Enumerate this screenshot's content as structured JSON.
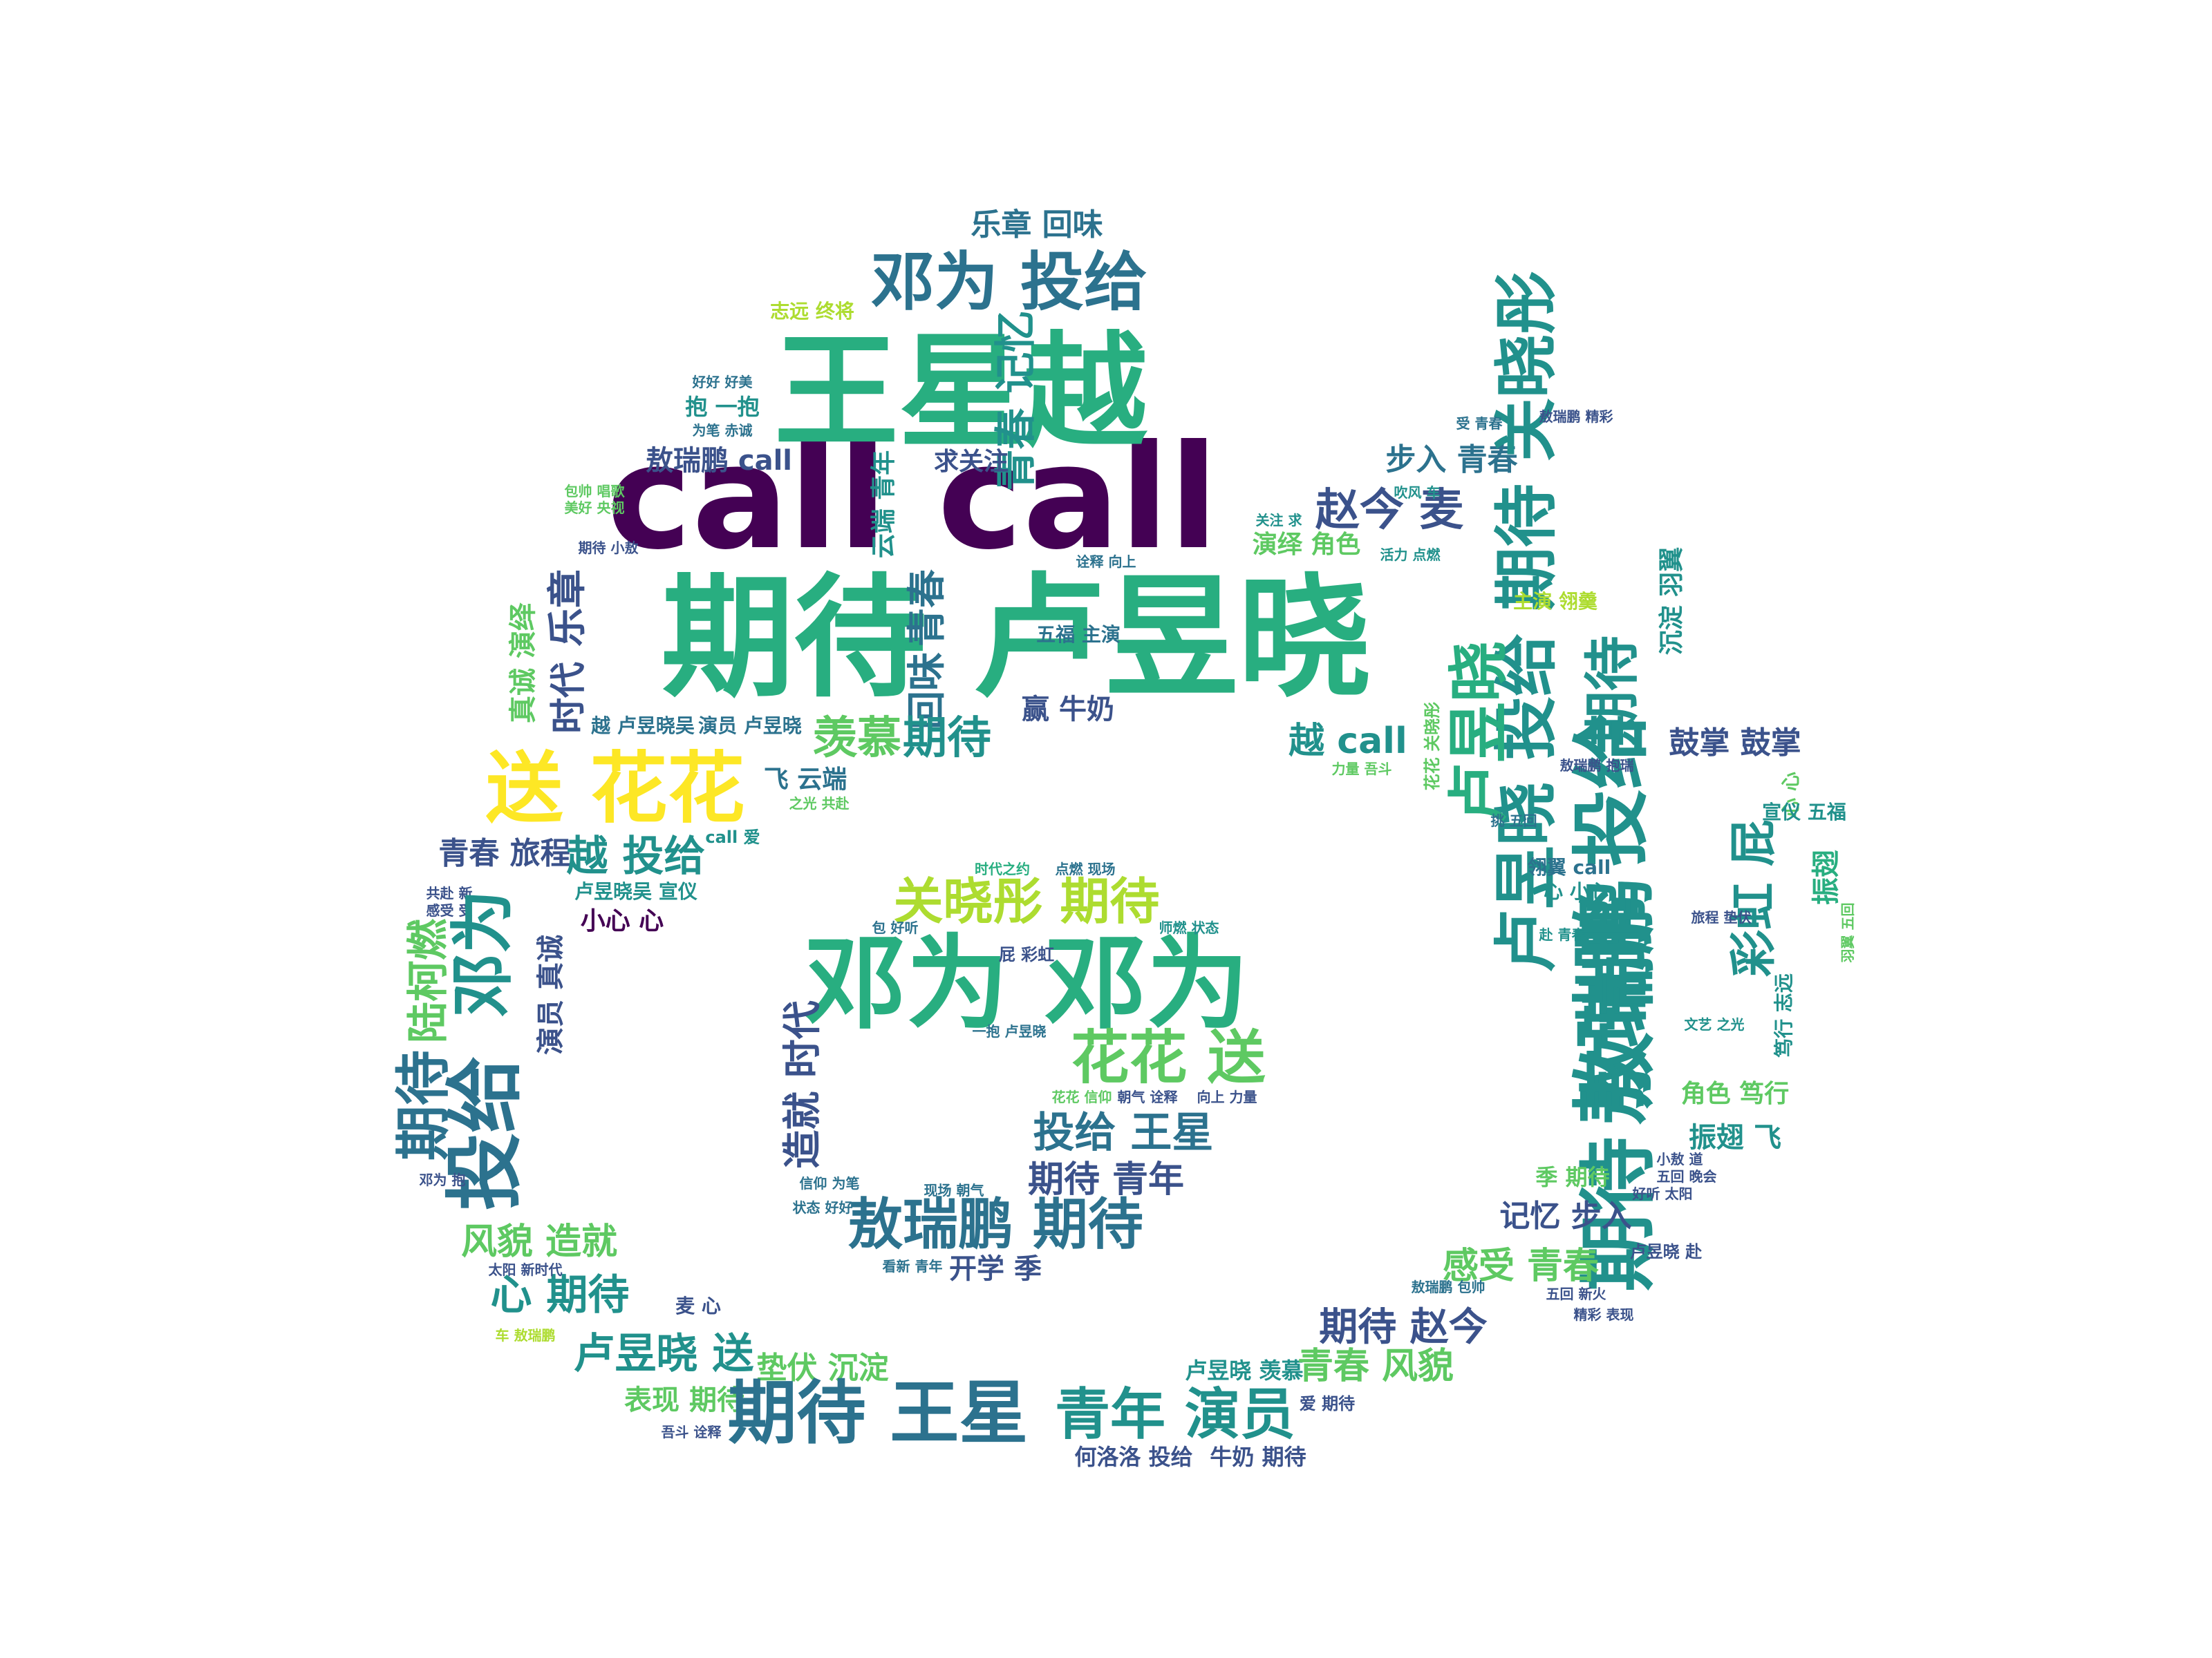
{
  "palette": {
    "dark_purple": "#440154",
    "indigo": "#3b528b",
    "teal_blue": "#2c728e",
    "teal": "#21918c",
    "green": "#28ae80",
    "light_green": "#5ec962",
    "lime": "#addc30",
    "yellow": "#fde725"
  },
  "words": [
    {
      "text": "期待 卢昱晓",
      "size": 96,
      "color": "#28ae80"
    },
    {
      "text": "call call",
      "size": 104,
      "color": "#440154"
    },
    {
      "text": "王星越",
      "size": 90,
      "color": "#28ae80"
    },
    {
      "text": "邓为 投给",
      "size": 46,
      "color": "#2c728e"
    },
    {
      "text": "乐章 回味",
      "size": 22,
      "color": "#2c728e"
    },
    {
      "text": "志远 终将",
      "size": 14,
      "color": "#addc30"
    },
    {
      "text": "青春 记忆",
      "size": 30,
      "color": "#21918c"
    },
    {
      "text": "敖瑞鹏 call",
      "size": 20,
      "color": "#3b528b"
    },
    {
      "text": "求关注",
      "size": 18,
      "color": "#3b528b"
    },
    {
      "text": "云端 青年",
      "size": 18,
      "color": "#21918c"
    },
    {
      "text": "抱 一抱",
      "size": 16,
      "color": "#21918c"
    },
    {
      "text": "好好 好美",
      "size": 10,
      "color": "#2c728e"
    },
    {
      "text": "为笔 赤诚",
      "size": 10,
      "color": "#2c728e"
    },
    {
      "text": "期待 小敖",
      "size": 10,
      "color": "#3b528b"
    },
    {
      "text": "步入 青春",
      "size": 22,
      "color": "#2c728e"
    },
    {
      "text": "赵今 麦",
      "size": 32,
      "color": "#3b528b"
    },
    {
      "text": "卢昱晓 投给 期待 关晓彤",
      "size": 46,
      "color": "#21918c"
    },
    {
      "text": "演绎 角色",
      "size": 18,
      "color": "#5ec962"
    },
    {
      "text": "吹风 车",
      "size": 10,
      "color": "#21918c"
    },
    {
      "text": "活力 点燃",
      "size": 10,
      "color": "#21918c"
    },
    {
      "text": "诠释 向上",
      "size": 10,
      "color": "#2c728e"
    },
    {
      "text": "关注 求",
      "size": 10,
      "color": "#21918c"
    },
    {
      "text": "敖瑞鹏 精彩",
      "size": 10,
      "color": "#3b528b"
    },
    {
      "text": "受 青春",
      "size": 10,
      "color": "#2c728e"
    },
    {
      "text": "主演 翎羹",
      "size": 14,
      "color": "#addc30"
    },
    {
      "text": "沉淀 羽翼",
      "size": 18,
      "color": "#21918c"
    },
    {
      "text": "乐章",
      "size": 28,
      "color": "#3b528b"
    },
    {
      "text": "时代",
      "size": 26,
      "color": "#3b528b"
    },
    {
      "text": "真诚 演绎",
      "size": 20,
      "color": "#5ec962"
    },
    {
      "text": "青春",
      "size": 28,
      "color": "#2c728e"
    },
    {
      "text": "回味",
      "size": 28,
      "color": "#2c728e"
    },
    {
      "text": "五福 主演",
      "size": 14,
      "color": "#2c728e"
    },
    {
      "text": "赢 牛奶",
      "size": 20,
      "color": "#3b528b"
    },
    {
      "text": "越 卢昱晓吴",
      "size": 14,
      "color": "#2c728e"
    },
    {
      "text": "演员 卢昱晓",
      "size": 14,
      "color": "#2c728e"
    },
    {
      "text": "羡慕",
      "size": 32,
      "color": "#5ec962"
    },
    {
      "text": "期待",
      "size": 32,
      "color": "#21918c"
    },
    {
      "text": "越 call",
      "size": 26,
      "color": "#21918c"
    },
    {
      "text": "力量 吾斗",
      "size": 10,
      "color": "#5ec962"
    },
    {
      "text": "花花 关晓彤",
      "size": 12,
      "color": "#5ec962"
    },
    {
      "text": "卢昱晓",
      "size": 44,
      "color": "#28ae80"
    },
    {
      "text": "期待",
      "size": 40,
      "color": "#21918c"
    },
    {
      "text": "鼓掌 鼓掌",
      "size": 22,
      "color": "#3b528b"
    },
    {
      "text": "敖瑞鹏 投给",
      "size": 56,
      "color": "#21918c"
    },
    {
      "text": "心 心",
      "size": 14,
      "color": "#5ec962"
    },
    {
      "text": "宣仪 五福",
      "size": 14,
      "color": "#21918c"
    },
    {
      "text": "彩虹 屁",
      "size": 34,
      "color": "#21918c"
    },
    {
      "text": "振翅",
      "size": 20,
      "color": "#28ae80"
    },
    {
      "text": "羽翼 五回",
      "size": 10,
      "color": "#5ec962"
    },
    {
      "text": "送 花花",
      "size": 56,
      "color": "#fde725"
    },
    {
      "text": "飞 云端",
      "size": 18,
      "color": "#2c728e"
    },
    {
      "text": "之光 共赴",
      "size": 10,
      "color": "#5ec962"
    },
    {
      "text": "call 爱",
      "size": 12,
      "color": "#21918c"
    },
    {
      "text": "青春 旅程",
      "size": 22,
      "color": "#3b528b"
    },
    {
      "text": "越 投给",
      "size": 30,
      "color": "#21918c"
    },
    {
      "text": "卢昱晓吴 宣仪",
      "size": 14,
      "color": "#21918c"
    },
    {
      "text": "小心 心",
      "size": 18,
      "color": "#440154"
    },
    {
      "text": "共赴 新",
      "size": 10,
      "color": "#3b528b"
    },
    {
      "text": "感受 受",
      "size": 10,
      "color": "#3b528b"
    },
    {
      "text": "陆柯燃",
      "size": 30,
      "color": "#5ec962"
    },
    {
      "text": "邓为",
      "size": 46,
      "color": "#21918c"
    },
    {
      "text": "演员 真诚",
      "size": 20,
      "color": "#3b528b"
    },
    {
      "text": "投给",
      "size": 56,
      "color": "#2c728e"
    },
    {
      "text": "期待",
      "size": 40,
      "color": "#2c728e"
    },
    {
      "text": "关晓彤 期待",
      "size": 36,
      "color": "#addc30"
    },
    {
      "text": "邓为 邓为",
      "size": 74,
      "color": "#28ae80"
    },
    {
      "text": "时代之约",
      "size": 10,
      "color": "#28ae80"
    },
    {
      "text": "点燃 现场",
      "size": 10,
      "color": "#2c728e"
    },
    {
      "text": "包 好听",
      "size": 10,
      "color": "#2c728e"
    },
    {
      "text": "屁 彩虹",
      "size": 12,
      "color": "#3b528b"
    },
    {
      "text": "师燃 状态",
      "size": 10,
      "color": "#21918c"
    },
    {
      "text": "一抱 卢昱晓",
      "size": 10,
      "color": "#2c728e"
    },
    {
      "text": "花花 送",
      "size": 42,
      "color": "#5ec962"
    },
    {
      "text": "造就 时代",
      "size": 28,
      "color": "#3b528b"
    },
    {
      "text": "投给 王星",
      "size": 30,
      "color": "#2c728e"
    },
    {
      "text": "期待 青年",
      "size": 26,
      "color": "#3b528b"
    },
    {
      "text": "敖瑞鹏 期待",
      "size": 40,
      "color": "#2c728e"
    },
    {
      "text": "开学 季",
      "size": 20,
      "color": "#3b528b"
    },
    {
      "text": "看新 青年",
      "size": 10,
      "color": "#2c728e"
    },
    {
      "text": "信仰 为笔",
      "size": 10,
      "color": "#2c728e"
    },
    {
      "text": "状态 好好",
      "size": 10,
      "color": "#2c728e"
    },
    {
      "text": "现场 朝气",
      "size": 10,
      "color": "#2c728e"
    },
    {
      "text": "花花 信仰",
      "size": 10,
      "color": "#5ec962"
    },
    {
      "text": "朝气 诠释",
      "size": 10,
      "color": "#3b528b"
    },
    {
      "text": "向上 力量",
      "size": 10,
      "color": "#3b528b"
    },
    {
      "text": "期待 敖瑞鹏",
      "size": 56,
      "color": "#21918c"
    },
    {
      "text": "角色 笃行",
      "size": 18,
      "color": "#5ec962"
    },
    {
      "text": "振翅 飞",
      "size": 20,
      "color": "#21918c"
    },
    {
      "text": "笃行 志远",
      "size": 14,
      "color": "#21918c"
    },
    {
      "text": "季 期待",
      "size": 16,
      "color": "#5ec962"
    },
    {
      "text": "记忆 步入",
      "size": 22,
      "color": "#3b528b"
    },
    {
      "text": "感受 青春",
      "size": 26,
      "color": "#5ec962"
    },
    {
      "text": "期待 赵今",
      "size": 28,
      "color": "#3b528b"
    },
    {
      "text": "卢昱晓 赴",
      "size": 12,
      "color": "#3b528b"
    },
    {
      "text": "敖瑞鹏 包帅",
      "size": 10,
      "color": "#2c728e"
    },
    {
      "text": "五回 新火",
      "size": 10,
      "color": "#3b528b"
    },
    {
      "text": "精彩 表现",
      "size": 10,
      "color": "#3b528b"
    },
    {
      "text": "卢昱晓 羡慕",
      "size": 16,
      "color": "#21918c"
    },
    {
      "text": "青春 风貌",
      "size": 26,
      "color": "#5ec962"
    },
    {
      "text": "爱 期待",
      "size": 12,
      "color": "#3b528b"
    },
    {
      "text": "风貌 造就",
      "size": 26,
      "color": "#5ec962"
    },
    {
      "text": "心 期待",
      "size": 30,
      "color": "#21918c"
    },
    {
      "text": "太阳 新时代",
      "size": 10,
      "color": "#3b528b"
    },
    {
      "text": "麦 心",
      "size": 14,
      "color": "#3b528b"
    },
    {
      "text": "车 敖瑞鹏",
      "size": 10,
      "color": "#addc30"
    },
    {
      "text": "卢昱晓 送",
      "size": 30,
      "color": "#21918c"
    },
    {
      "text": "垫伏 沉淀",
      "size": 22,
      "color": "#5ec962"
    },
    {
      "text": "表现 期待",
      "size": 20,
      "color": "#5ec962"
    },
    {
      "text": "吾斗 诠释",
      "size": 10,
      "color": "#3b528b"
    },
    {
      "text": "期待 王星",
      "size": 50,
      "color": "#2c728e"
    },
    {
      "text": "青年 演员",
      "size": 40,
      "color": "#21918c"
    },
    {
      "text": "何洛洛 投给",
      "size": 16,
      "color": "#3b528b"
    },
    {
      "text": "牛奶 期待",
      "size": 16,
      "color": "#3b528b"
    },
    {
      "text": "邓为 抱",
      "size": 10,
      "color": "#3b528b"
    },
    {
      "text": "好听 太阳",
      "size": 10,
      "color": "#3b528b"
    },
    {
      "text": "小敖 道",
      "size": 10,
      "color": "#3b528b"
    },
    {
      "text": "五回 晚会",
      "size": 10,
      "color": "#3b528b"
    },
    {
      "text": "文艺 之光",
      "size": 10,
      "color": "#21918c"
    },
    {
      "text": "赴 青春",
      "size": 10,
      "color": "#21918c"
    },
    {
      "text": "旅程 垫伏",
      "size": 10,
      "color": "#3b528b"
    },
    {
      "text": "翎翼 call",
      "size": 14,
      "color": "#2c728e"
    },
    {
      "text": "心 小心",
      "size": 14,
      "color": "#21918c"
    },
    {
      "text": "挑 五回",
      "size": 10,
      "color": "#2c728e"
    },
    {
      "text": "敖瑞鹏 抱瑞",
      "size": 10,
      "color": "#3b528b"
    },
    {
      "text": "包帅 唱歌",
      "size": 10,
      "color": "#5ec962"
    },
    {
      "text": "美好 央视",
      "size": 10,
      "color": "#5ec962"
    }
  ]
}
